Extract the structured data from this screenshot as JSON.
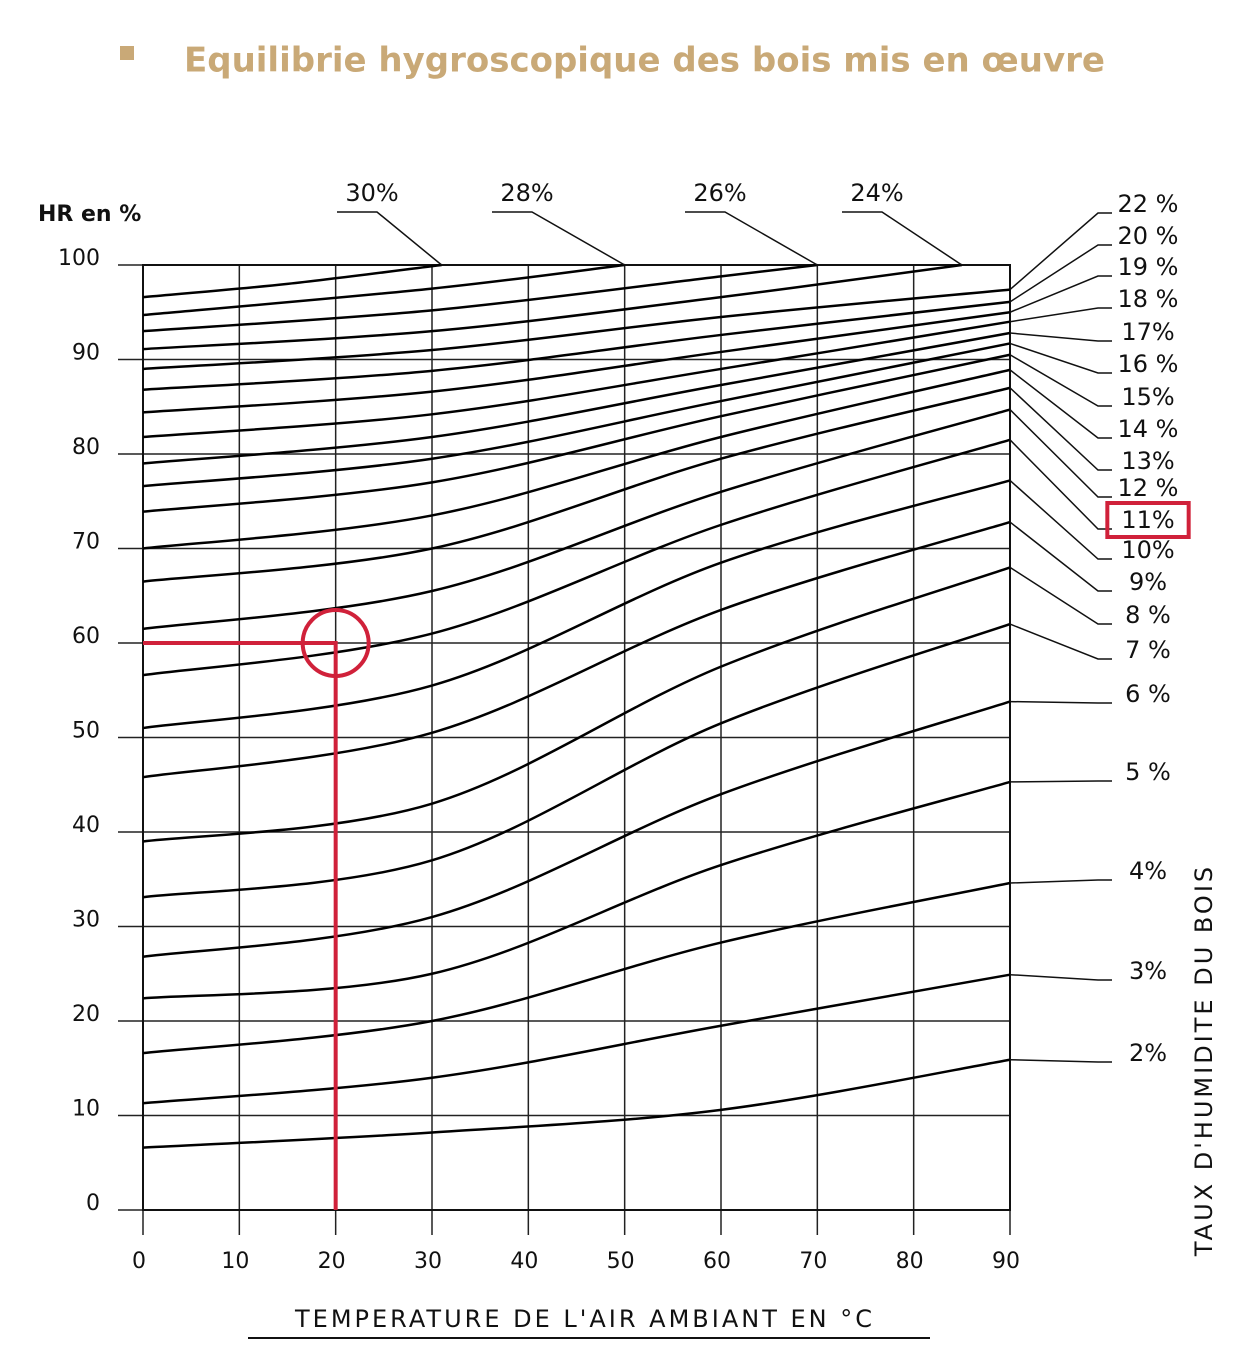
{
  "chart_data": {
    "type": "line",
    "title": "Equilibrie hygroscopique des bois mis en œuvre",
    "y_label": "HR en %",
    "x_label": "TEMPERATURE DE L'AIR AMBIANT EN °C",
    "y2_label": "TAUX D'HUMIDITE DU BOIS",
    "xlim": [
      0,
      90
    ],
    "xticks": [
      0,
      10,
      20,
      30,
      40,
      50,
      60,
      70,
      80,
      90
    ],
    "ylim": [
      0,
      100
    ],
    "yticks": [
      0,
      10,
      20,
      30,
      40,
      50,
      60,
      70,
      80,
      90,
      100
    ],
    "grid": true,
    "highlight": {
      "x": 20,
      "y": 60,
      "color": "#d0213a"
    },
    "series": [
      {
        "name": "30%",
        "color": "#000000",
        "x": [
          0,
          15,
          31
        ],
        "values": [
          96.6,
          98,
          100
        ]
      },
      {
        "name": "28%",
        "color": "#000000",
        "x": [
          0,
          30,
          50
        ],
        "values": [
          94.7,
          97.5,
          100
        ]
      },
      {
        "name": "26%",
        "color": "#000000",
        "x": [
          0,
          30,
          60,
          70
        ],
        "values": [
          93,
          95.2,
          98.8,
          100
        ]
      },
      {
        "name": "24%",
        "color": "#000000",
        "x": [
          0,
          30,
          60,
          85
        ],
        "values": [
          91.1,
          93,
          96.6,
          100
        ]
      },
      {
        "name": "22 %",
        "color": "#000000",
        "x": [
          0,
          30,
          60,
          90
        ],
        "values": [
          89,
          91,
          94.5,
          97.4
        ]
      },
      {
        "name": "20 %",
        "color": "#000000",
        "x": [
          0,
          30,
          60,
          90
        ],
        "values": [
          86.8,
          88.8,
          92.6,
          96.1
        ]
      },
      {
        "name": "19 %",
        "color": "#000000",
        "x": [
          0,
          30,
          60,
          90
        ],
        "values": [
          84.4,
          86.6,
          90.8,
          95
        ]
      },
      {
        "name": "18 %",
        "color": "#000000",
        "x": [
          0,
          30,
          60,
          90
        ],
        "values": [
          81.8,
          84.2,
          89,
          94
        ]
      },
      {
        "name": "17%",
        "color": "#000000",
        "x": [
          0,
          30,
          60,
          90
        ],
        "values": [
          79,
          81.8,
          87.3,
          92.8
        ]
      },
      {
        "name": "16 %",
        "color": "#000000",
        "x": [
          0,
          30,
          60,
          90
        ],
        "values": [
          76.6,
          79.5,
          85.6,
          91.7
        ]
      },
      {
        "name": "15%",
        "color": "#000000",
        "x": [
          0,
          30,
          60,
          90
        ],
        "values": [
          73.9,
          77,
          84,
          90.5
        ]
      },
      {
        "name": "14 %",
        "color": "#000000",
        "x": [
          0,
          30,
          60,
          90
        ],
        "values": [
          70,
          73.5,
          81.8,
          88.9
        ]
      },
      {
        "name": "13%",
        "color": "#000000",
        "x": [
          0,
          30,
          60,
          90
        ],
        "values": [
          66.5,
          70,
          79.5,
          87
        ]
      },
      {
        "name": "12 %",
        "color": "#000000",
        "x": [
          0,
          30,
          60,
          90
        ],
        "values": [
          61.5,
          65.5,
          76,
          84.7
        ]
      },
      {
        "name": "11%",
        "color": "#000000",
        "x": [
          0,
          30,
          60,
          90
        ],
        "values": [
          56.6,
          61,
          72.5,
          81.5
        ]
      },
      {
        "name": "10%",
        "color": "#000000",
        "x": [
          0,
          30,
          60,
          90
        ],
        "values": [
          51,
          55.5,
          68.5,
          77.2
        ]
      },
      {
        "name": "9%",
        "color": "#000000",
        "x": [
          0,
          30,
          60,
          90
        ],
        "values": [
          45.8,
          50.5,
          63.5,
          72.8
        ]
      },
      {
        "name": "8 %",
        "color": "#000000",
        "x": [
          0,
          30,
          60,
          90
        ],
        "values": [
          39,
          43,
          57.5,
          68
        ]
      },
      {
        "name": "7 %",
        "color": "#000000",
        "x": [
          0,
          30,
          60,
          90
        ],
        "values": [
          33.1,
          37,
          51.5,
          62
        ]
      },
      {
        "name": "6 %",
        "color": "#000000",
        "x": [
          0,
          30,
          60,
          90
        ],
        "values": [
          26.8,
          31,
          44,
          53.8
        ]
      },
      {
        "name": "5 %",
        "color": "#000000",
        "x": [
          0,
          30,
          60,
          90
        ],
        "values": [
          22.4,
          25,
          36.5,
          45.3
        ]
      },
      {
        "name": "4%",
        "color": "#000000",
        "x": [
          0,
          30,
          60,
          90
        ],
        "values": [
          16.6,
          20,
          28.3,
          34.6
        ]
      },
      {
        "name": "3%",
        "color": "#000000",
        "x": [
          0,
          30,
          60,
          90
        ],
        "values": [
          11.3,
          14,
          19.5,
          24.9
        ]
      },
      {
        "name": "2%",
        "color": "#000000",
        "x": [
          0,
          30,
          60,
          90
        ],
        "values": [
          6.6,
          8.2,
          10.6,
          15.9
        ]
      }
    ]
  }
}
